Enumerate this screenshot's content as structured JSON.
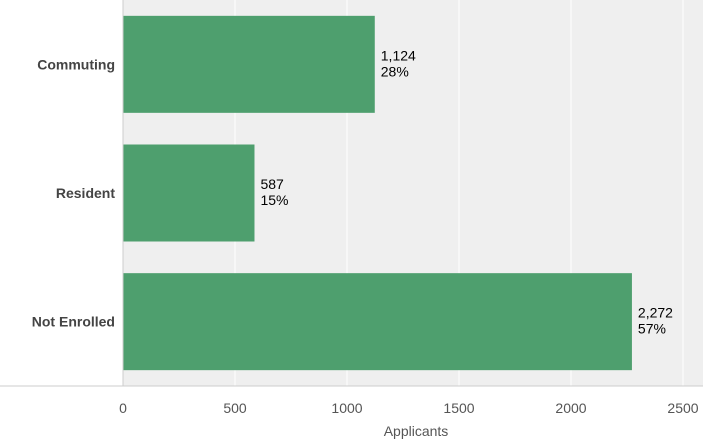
{
  "chart_data": {
    "type": "bar",
    "orientation": "horizontal",
    "categories": [
      "Commuting",
      "Resident",
      "Not Enrolled"
    ],
    "values": [
      1124,
      587,
      2272
    ],
    "value_labels": [
      "1,124",
      "587",
      "2,272"
    ],
    "percent_labels": [
      "28%",
      "15%",
      "57%"
    ],
    "xlabel": "Applicants",
    "xlim": [
      0,
      2500
    ],
    "xticks": [
      0,
      500,
      1000,
      1500,
      2000,
      2500
    ],
    "grid": true,
    "legend": "none"
  },
  "colors": {
    "bar": "#4e9f6e",
    "plot_background": "#efefef",
    "grid": "#ffffff",
    "axis": "#cccccc"
  }
}
